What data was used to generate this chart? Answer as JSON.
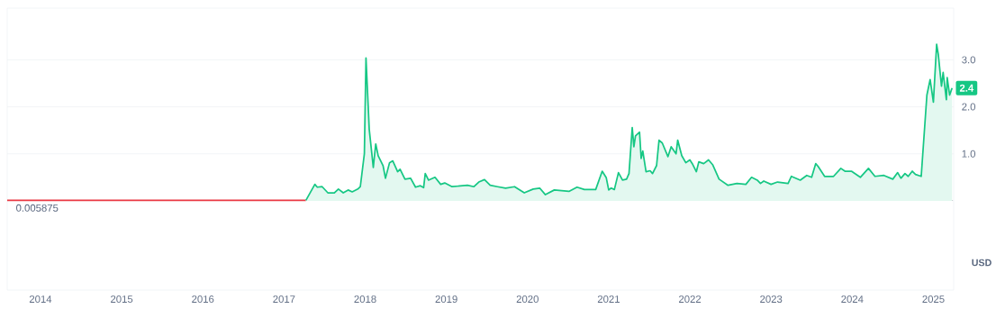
{
  "chart_data": {
    "type": "line",
    "xlim": [
      2013.59,
      2025.25
    ],
    "ylim": [
      -1.9,
      4.1
    ],
    "xticks": [
      2014,
      2015,
      2016,
      2017,
      2018,
      2019,
      2020,
      2021,
      2022,
      2023,
      2024,
      2025
    ],
    "yticks": [
      {
        "value": 1,
        "label": "1.0"
      },
      {
        "value": 2,
        "label": "2.0"
      },
      {
        "value": 3,
        "label": "3.0"
      }
    ],
    "grid": "y",
    "ref_lines": [
      {
        "axis": "y",
        "value": 0.005875,
        "label": "0.005875",
        "color": "#c0c4cc",
        "line_style": "dotted"
      }
    ],
    "annotations": [
      {
        "text": "2.4",
        "x": 2025.23,
        "y": 2.4
      },
      "USD"
    ],
    "series": [
      {
        "color": "#ea3943",
        "x": [
          2013.59,
          2015.0,
          2017.27
        ],
        "values": [
          0.01,
          0.01,
          0.01
        ]
      },
      {
        "type": "area",
        "color": "#16c784",
        "x": [
          2017.27,
          2017.38,
          2017.41,
          2017.47,
          2017.54,
          2017.62,
          2017.67,
          2017.73,
          2017.79,
          2017.84,
          2017.91,
          2017.94,
          2017.99,
          2018.01,
          2018.05,
          2018.1,
          2018.13,
          2018.16,
          2018.22,
          2018.25,
          2018.3,
          2018.34,
          2018.4,
          2018.43,
          2018.49,
          2018.56,
          2018.62,
          2018.68,
          2018.72,
          2018.74,
          2018.78,
          2018.86,
          2018.93,
          2018.98,
          2019.07,
          2019.26,
          2019.34,
          2019.4,
          2019.47,
          2019.54,
          2019.63,
          2019.73,
          2019.84,
          2019.96,
          2020.07,
          2020.15,
          2020.22,
          2020.33,
          2020.51,
          2020.61,
          2020.7,
          2020.84,
          2020.92,
          2020.97,
          2021.0,
          2021.03,
          2021.07,
          2021.12,
          2021.17,
          2021.22,
          2021.25,
          2021.29,
          2021.31,
          2021.33,
          2021.38,
          2021.4,
          2021.42,
          2021.46,
          2021.51,
          2021.54,
          2021.59,
          2021.62,
          2021.66,
          2021.73,
          2021.77,
          2021.83,
          2021.85,
          2021.9,
          2021.95,
          2022.0,
          2022.03,
          2022.08,
          2022.11,
          2022.17,
          2022.23,
          2022.28,
          2022.36,
          2022.47,
          2022.58,
          2022.69,
          2022.76,
          2022.83,
          2022.87,
          2022.91,
          2023.0,
          2023.08,
          2023.21,
          2023.25,
          2023.36,
          2023.44,
          2023.5,
          2023.55,
          2023.58,
          2023.66,
          2023.77,
          2023.86,
          2023.91,
          2023.99,
          2024.1,
          2024.2,
          2024.28,
          2024.39,
          2024.5,
          2024.56,
          2024.6,
          2024.65,
          2024.69,
          2024.74,
          2024.78,
          2024.85,
          2024.92,
          2024.96,
          2025.0,
          2025.04,
          2025.06,
          2025.1,
          2025.12,
          2025.16,
          2025.17,
          2025.2,
          2025.23
        ],
        "values": [
          0.01,
          0.35,
          0.29,
          0.3,
          0.17,
          0.17,
          0.25,
          0.17,
          0.23,
          0.19,
          0.25,
          0.3,
          1.0,
          3.04,
          1.52,
          0.71,
          1.21,
          0.96,
          0.75,
          0.48,
          0.81,
          0.85,
          0.62,
          0.67,
          0.46,
          0.48,
          0.29,
          0.32,
          0.28,
          0.58,
          0.44,
          0.5,
          0.35,
          0.38,
          0.3,
          0.33,
          0.3,
          0.4,
          0.45,
          0.33,
          0.3,
          0.27,
          0.3,
          0.17,
          0.25,
          0.27,
          0.13,
          0.23,
          0.2,
          0.29,
          0.24,
          0.24,
          0.63,
          0.49,
          0.23,
          0.27,
          0.24,
          0.6,
          0.44,
          0.46,
          0.58,
          1.56,
          1.15,
          1.38,
          1.46,
          0.9,
          1.06,
          0.62,
          0.64,
          0.58,
          0.75,
          1.29,
          1.23,
          0.94,
          1.15,
          1.0,
          1.29,
          0.96,
          0.81,
          0.87,
          0.79,
          0.62,
          0.83,
          0.79,
          0.87,
          0.77,
          0.46,
          0.33,
          0.37,
          0.35,
          0.5,
          0.44,
          0.37,
          0.42,
          0.35,
          0.4,
          0.37,
          0.52,
          0.44,
          0.54,
          0.5,
          0.79,
          0.73,
          0.52,
          0.52,
          0.69,
          0.63,
          0.63,
          0.5,
          0.69,
          0.52,
          0.54,
          0.46,
          0.6,
          0.48,
          0.58,
          0.52,
          0.63,
          0.56,
          0.52,
          2.25,
          2.58,
          2.1,
          3.33,
          3.12,
          2.44,
          2.73,
          2.15,
          2.62,
          2.25,
          2.4
        ]
      }
    ]
  }
}
